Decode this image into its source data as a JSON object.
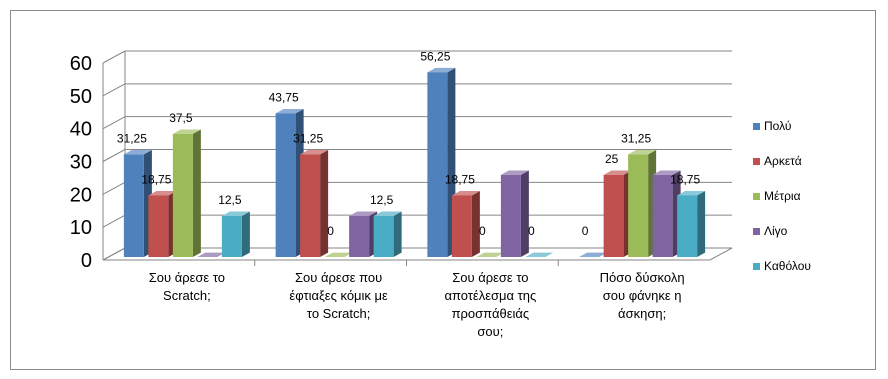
{
  "chart_data": {
    "type": "bar",
    "style": "3d-clustered-column",
    "categories": [
      [
        "Σου άρεσε το",
        "Scratch;"
      ],
      [
        "Σου άρεσε που",
        "έφτιαξες κόμικ με",
        "το Scratch;"
      ],
      [
        "Σου άρεσε το",
        "αποτέλεσμα της",
        "προσπάθειάς",
        "σου;"
      ],
      [
        "Πόσο δύσκολη",
        "σου φάνηκε η",
        "άσκηση;"
      ]
    ],
    "series": [
      {
        "name": "Πολύ",
        "values": [
          31.25,
          43.75,
          56.25,
          0
        ],
        "labels": [
          "31,25",
          "43,75",
          "56,25",
          "0"
        ],
        "color": "#4f81bd"
      },
      {
        "name": "Αρκετά",
        "values": [
          18.75,
          31.25,
          18.75,
          25
        ],
        "labels": [
          "18,75",
          "31,25",
          "18,75",
          "25"
        ],
        "color": "#c0504d"
      },
      {
        "name": "Μέτρια",
        "values": [
          37.5,
          0,
          0,
          31.25
        ],
        "labels": [
          "37,5",
          "0",
          "0",
          "31,25"
        ],
        "color": "#9bbb59"
      },
      {
        "name": "Λίγο",
        "values": [
          0,
          12.5,
          25,
          25
        ],
        "labels": [
          "",
          "",
          "",
          ""
        ],
        "color": "#8064a2"
      },
      {
        "name": "Καθόλου",
        "values": [
          12.5,
          12.5,
          0,
          18.75
        ],
        "labels": [
          "12,5",
          "12,5",
          "0",
          "18,75"
        ],
        "color": "#4bacc6"
      }
    ],
    "yticks": [
      0,
      10,
      20,
      30,
      40,
      50,
      60
    ],
    "ylim": [
      0,
      60
    ],
    "grid": true,
    "legend": "right"
  }
}
